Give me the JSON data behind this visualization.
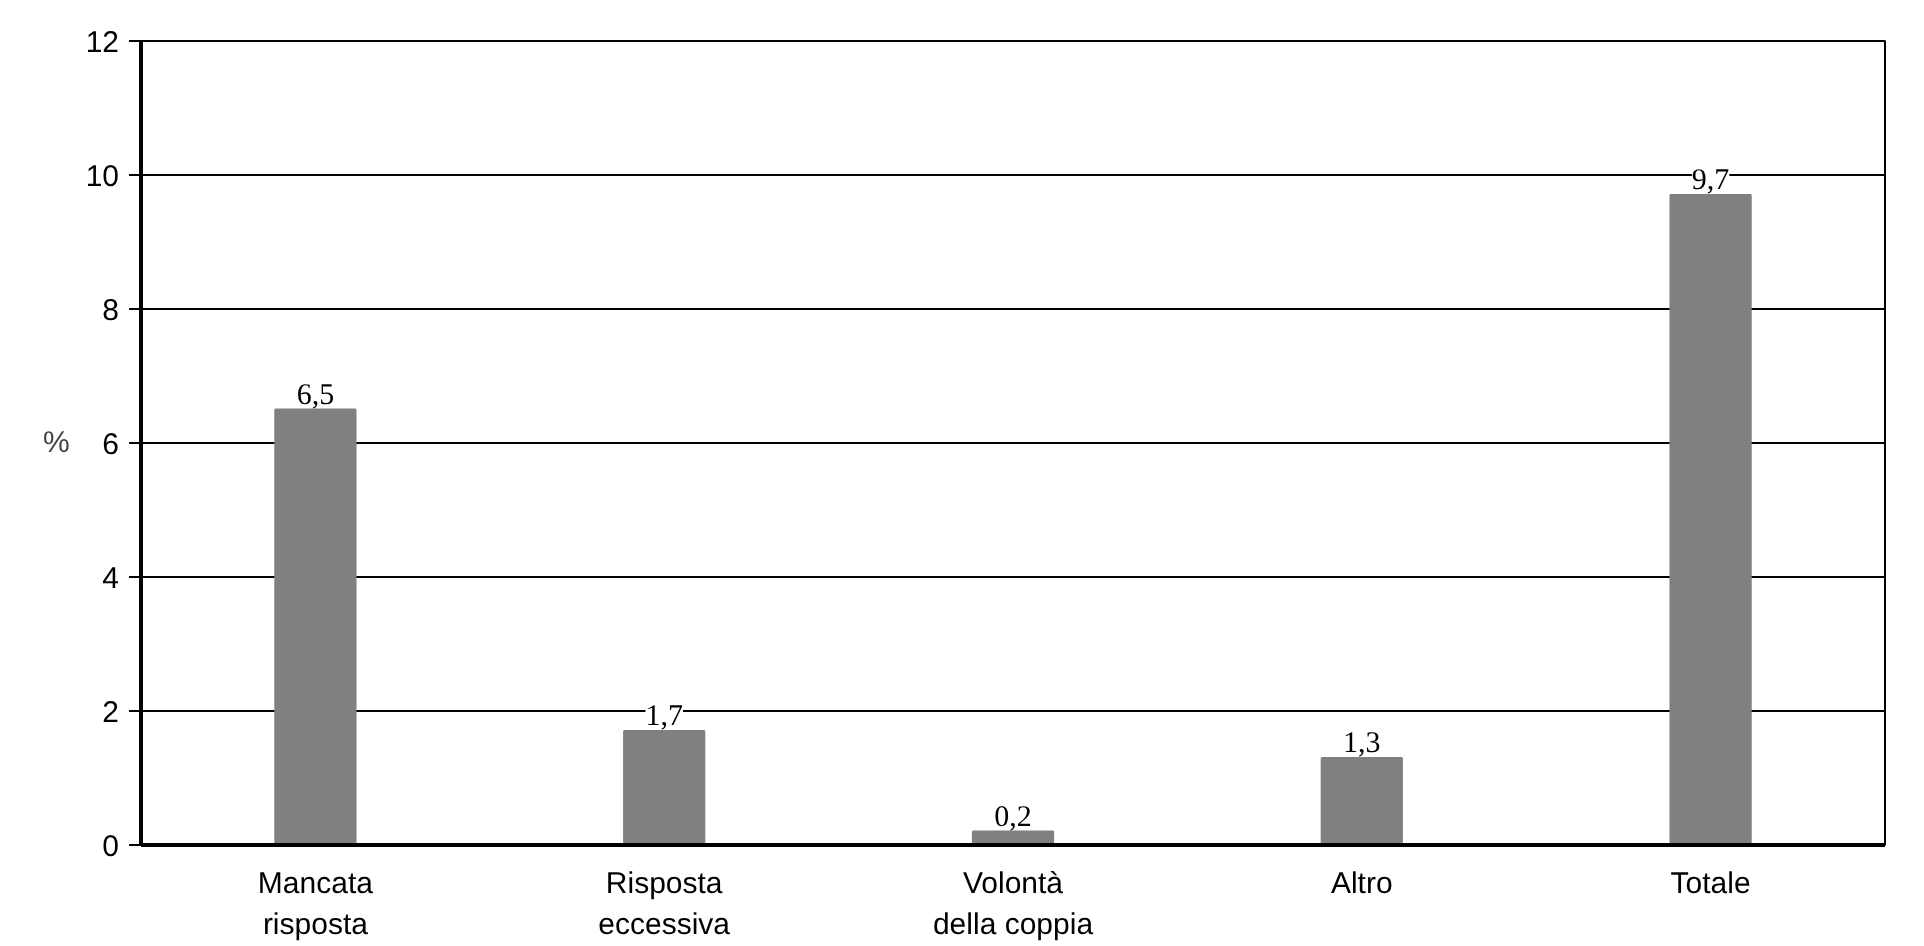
{
  "chart_data": {
    "type": "bar",
    "ylabel": "%",
    "categories": [
      "Mancata risposta",
      "Risposta eccessiva",
      "Volontà della coppia",
      "Altro",
      "Totale"
    ],
    "values": [
      6.5,
      1.7,
      0.2,
      1.3,
      9.7
    ],
    "value_labels": [
      "6,5",
      "1,7",
      "0,2",
      "1,3",
      "9,7"
    ],
    "color": "#808080",
    "ylim": [
      0,
      12
    ],
    "yticks": [
      0,
      2,
      4,
      6,
      8,
      10,
      12
    ],
    "grid": "y"
  }
}
